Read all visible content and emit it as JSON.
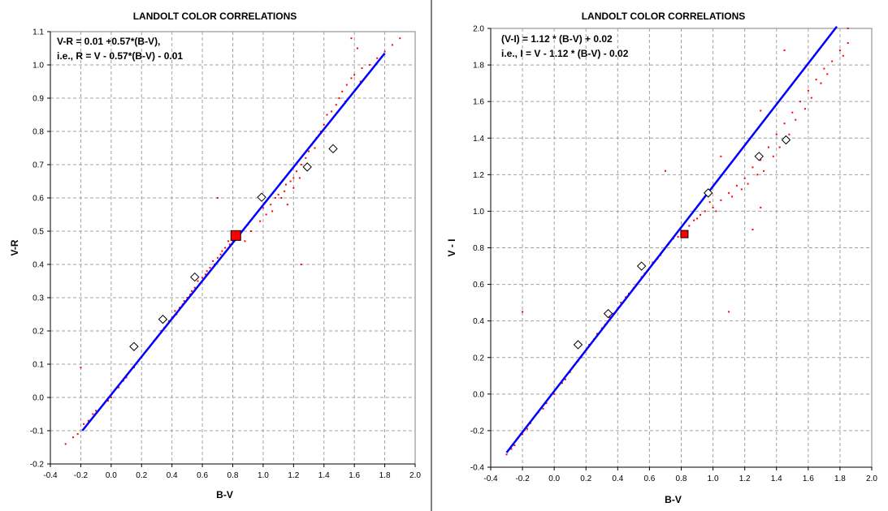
{
  "chart_data": [
    {
      "type": "scatter",
      "title": "LANDOLT COLOR CORRELATIONS",
      "xlabel": "B-V",
      "ylabel": "V-R",
      "xlim": [
        -0.4,
        2.0
      ],
      "ylim": [
        -0.2,
        1.1
      ],
      "x_ticks": [
        "-0.4",
        "-0.2",
        "0.0",
        "0.2",
        "0.4",
        "0.6",
        "0.8",
        "1.0",
        "1.2",
        "1.4",
        "1.6",
        "1.8",
        "2.0"
      ],
      "y_ticks": [
        "-0.2",
        "-0.1",
        "0.0",
        "0.1",
        "0.2",
        "0.3",
        "0.4",
        "0.5",
        "0.6",
        "0.7",
        "0.8",
        "0.9",
        "1.0",
        "1.1"
      ],
      "grid": true,
      "annotation_lines": [
        "V-R = 0.01 +0.57*(B-V),",
        "i.e., R = V - 0.57*(B-V) - 0.01"
      ],
      "series": [
        {
          "role": "fit",
          "color": "#0000ff",
          "points": [
            [
              -0.19,
              -0.1
            ],
            [
              1.8,
              1.035
            ]
          ]
        },
        {
          "role": "highlight",
          "color": "#ff0000",
          "points": [
            [
              0.82,
              0.487
            ]
          ]
        },
        {
          "role": "open-diamond",
          "color": "#000000",
          "points": [
            [
              0.15,
              0.153
            ],
            [
              0.34,
              0.235
            ],
            [
              0.55,
              0.362
            ],
            [
              0.99,
              0.602
            ],
            [
              1.29,
              0.693
            ],
            [
              1.46,
              0.748
            ]
          ]
        },
        {
          "role": "scatter",
          "color": "#ff0000",
          "points": [
            [
              -0.3,
              -0.14
            ],
            [
              -0.25,
              -0.12
            ],
            [
              -0.22,
              -0.11
            ],
            [
              -0.18,
              -0.08
            ],
            [
              -0.15,
              -0.07
            ],
            [
              -0.12,
              -0.05
            ],
            [
              -0.1,
              -0.04
            ],
            [
              -0.05,
              -0.02
            ],
            [
              -0.02,
              -0.01
            ],
            [
              0.0,
              0.0
            ],
            [
              0.02,
              0.02
            ],
            [
              0.05,
              0.03
            ],
            [
              0.08,
              0.05
            ],
            [
              0.1,
              0.06
            ],
            [
              0.15,
              0.09
            ],
            [
              0.18,
              0.11
            ],
            [
              0.2,
              0.12
            ],
            [
              0.25,
              0.15
            ],
            [
              0.28,
              0.17
            ],
            [
              0.3,
              0.18
            ],
            [
              0.35,
              0.21
            ],
            [
              0.38,
              0.23
            ],
            [
              0.4,
              0.24
            ],
            [
              0.42,
              0.26
            ],
            [
              0.45,
              0.27
            ],
            [
              0.48,
              0.29
            ],
            [
              0.5,
              0.3
            ],
            [
              0.52,
              0.31
            ],
            [
              0.55,
              0.33
            ],
            [
              0.58,
              0.34
            ],
            [
              0.6,
              0.36
            ],
            [
              0.62,
              0.37
            ],
            [
              0.65,
              0.39
            ],
            [
              0.68,
              0.4
            ],
            [
              0.7,
              0.42
            ],
            [
              0.72,
              0.43
            ],
            [
              0.75,
              0.45
            ],
            [
              0.78,
              0.46
            ],
            [
              0.8,
              0.47
            ],
            [
              0.85,
              0.5
            ],
            [
              0.9,
              0.52
            ],
            [
              0.95,
              0.55
            ],
            [
              1.0,
              0.57
            ],
            [
              1.02,
              0.55
            ],
            [
              1.05,
              0.58
            ],
            [
              1.08,
              0.6
            ],
            [
              1.1,
              0.61
            ],
            [
              1.12,
              0.6
            ],
            [
              1.15,
              0.64
            ],
            [
              1.18,
              0.65
            ],
            [
              1.2,
              0.66
            ],
            [
              1.22,
              0.68
            ],
            [
              1.25,
              0.7
            ],
            [
              1.28,
              0.72
            ],
            [
              1.3,
              0.74
            ],
            [
              1.32,
              0.76
            ],
            [
              1.35,
              0.78
            ],
            [
              1.38,
              0.8
            ],
            [
              1.4,
              0.82
            ],
            [
              1.42,
              0.85
            ],
            [
              1.45,
              0.86
            ],
            [
              1.48,
              0.88
            ],
            [
              1.5,
              0.9
            ],
            [
              1.52,
              0.92
            ],
            [
              1.55,
              0.94
            ],
            [
              1.58,
              0.96
            ],
            [
              1.6,
              0.97
            ],
            [
              1.65,
              0.99
            ],
            [
              1.7,
              1.0
            ],
            [
              1.75,
              1.02
            ],
            [
              1.8,
              1.04
            ],
            [
              1.85,
              1.06
            ],
            [
              1.9,
              1.08
            ],
            [
              1.58,
              1.08
            ],
            [
              1.62,
              1.05
            ],
            [
              0.7,
              0.6
            ],
            [
              0.98,
              0.53
            ],
            [
              1.25,
              0.4
            ],
            [
              -0.2,
              0.09
            ],
            [
              0.88,
              0.47
            ],
            [
              0.92,
              0.5
            ],
            [
              1.06,
              0.56
            ],
            [
              1.14,
              0.62
            ],
            [
              1.16,
              0.58
            ],
            [
              1.2,
              0.63
            ],
            [
              1.24,
              0.66
            ],
            [
              1.34,
              0.75
            ],
            [
              1.44,
              0.83
            ],
            [
              1.54,
              0.89
            ],
            [
              1.64,
              0.95
            ],
            [
              0.33,
              0.2
            ],
            [
              0.37,
              0.22
            ],
            [
              0.43,
              0.25
            ],
            [
              0.47,
              0.28
            ],
            [
              0.53,
              0.32
            ],
            [
              0.57,
              0.35
            ],
            [
              0.63,
              0.38
            ],
            [
              0.67,
              0.41
            ],
            [
              0.73,
              0.44
            ],
            [
              0.77,
              0.47
            ]
          ]
        }
      ]
    },
    {
      "type": "scatter",
      "title": "LANDOLT COLOR CORRELATIONS",
      "xlabel": "B-V",
      "ylabel": "V - I",
      "xlim": [
        -0.4,
        2.0
      ],
      "ylim": [
        -0.4,
        2.0
      ],
      "x_ticks": [
        "-0.4",
        "-0.2",
        "0.0",
        "0.2",
        "0.4",
        "0.6",
        "0.8",
        "1.0",
        "1.2",
        "1.4",
        "1.6",
        "1.8",
        "2.0"
      ],
      "y_ticks": [
        "-0.4",
        "-0.2",
        "0.0",
        "0.2",
        "0.4",
        "0.6",
        "0.8",
        "1.0",
        "1.2",
        "1.4",
        "1.6",
        "1.8",
        "2.0"
      ],
      "grid": true,
      "annotation_lines": [
        "(V-I) = 1.12 * (B-V) + 0.02",
        "i.e., I = V - 1.12 * (B-V) - 0.02"
      ],
      "series": [
        {
          "role": "fit",
          "color": "#0000ff",
          "points": [
            [
              -0.3,
              -0.32
            ],
            [
              1.78,
              2.01
            ]
          ]
        },
        {
          "role": "highlight",
          "color": "#ff0000",
          "points": [
            [
              0.82,
              0.875
            ]
          ]
        },
        {
          "role": "open-diamond",
          "color": "#000000",
          "points": [
            [
              0.15,
              0.27
            ],
            [
              0.34,
              0.44
            ],
            [
              0.55,
              0.7
            ],
            [
              0.97,
              1.1
            ],
            [
              1.29,
              1.3
            ],
            [
              1.46,
              1.39
            ]
          ]
        },
        {
          "role": "scatter",
          "color": "#ff0000",
          "points": [
            [
              -0.3,
              -0.33
            ],
            [
              -0.25,
              -0.28
            ],
            [
              -0.2,
              -0.22
            ],
            [
              -0.15,
              -0.16
            ],
            [
              -0.1,
              -0.1
            ],
            [
              -0.05,
              -0.05
            ],
            [
              0.0,
              0.0
            ],
            [
              0.05,
              0.06
            ],
            [
              0.1,
              0.12
            ],
            [
              0.15,
              0.18
            ],
            [
              0.2,
              0.24
            ],
            [
              0.25,
              0.3
            ],
            [
              0.3,
              0.36
            ],
            [
              0.35,
              0.42
            ],
            [
              0.4,
              0.47
            ],
            [
              0.45,
              0.53
            ],
            [
              0.5,
              0.58
            ],
            [
              0.55,
              0.64
            ],
            [
              0.6,
              0.69
            ],
            [
              0.65,
              0.74
            ],
            [
              0.7,
              0.8
            ],
            [
              0.75,
              0.85
            ],
            [
              0.8,
              0.88
            ],
            [
              0.85,
              0.92
            ],
            [
              0.9,
              0.96
            ],
            [
              0.95,
              1.0
            ],
            [
              1.0,
              1.02
            ],
            [
              1.05,
              1.06
            ],
            [
              1.1,
              1.1
            ],
            [
              1.15,
              1.14
            ],
            [
              1.2,
              1.18
            ],
            [
              1.25,
              1.24
            ],
            [
              1.3,
              1.28
            ],
            [
              1.35,
              1.35
            ],
            [
              1.4,
              1.42
            ],
            [
              1.45,
              1.48
            ],
            [
              1.5,
              1.54
            ],
            [
              1.55,
              1.6
            ],
            [
              1.6,
              1.66
            ],
            [
              1.65,
              1.72
            ],
            [
              1.7,
              1.78
            ],
            [
              1.75,
              1.82
            ],
            [
              1.8,
              1.88
            ],
            [
              1.85,
              1.92
            ],
            [
              1.1,
              0.45
            ],
            [
              0.7,
              1.22
            ],
            [
              -0.2,
              0.45
            ],
            [
              1.3,
              1.02
            ],
            [
              1.25,
              0.9
            ],
            [
              0.98,
              1.05
            ],
            [
              1.02,
              1.0
            ],
            [
              1.12,
              1.08
            ],
            [
              1.18,
              1.12
            ],
            [
              1.22,
              1.15
            ],
            [
              1.28,
              1.2
            ],
            [
              1.32,
              1.22
            ],
            [
              1.38,
              1.3
            ],
            [
              1.42,
              1.35
            ],
            [
              1.48,
              1.42
            ],
            [
              1.52,
              1.5
            ],
            [
              1.58,
              1.56
            ],
            [
              1.62,
              1.62
            ],
            [
              1.68,
              1.7
            ],
            [
              1.72,
              1.75
            ],
            [
              1.82,
              1.85
            ],
            [
              1.3,
              1.55
            ],
            [
              1.05,
              1.3
            ],
            [
              0.62,
              0.72
            ],
            [
              0.67,
              0.76
            ],
            [
              0.72,
              0.82
            ],
            [
              0.78,
              0.86
            ],
            [
              0.88,
              0.95
            ],
            [
              0.92,
              0.98
            ],
            [
              0.32,
              0.38
            ],
            [
              0.37,
              0.44
            ],
            [
              0.42,
              0.5
            ],
            [
              0.47,
              0.55
            ],
            [
              0.52,
              0.6
            ],
            [
              0.57,
              0.66
            ],
            [
              -0.27,
              -0.3
            ],
            [
              -0.17,
              -0.19
            ],
            [
              -0.07,
              -0.08
            ],
            [
              0.07,
              0.08
            ],
            [
              0.17,
              0.2
            ],
            [
              0.22,
              0.27
            ],
            [
              0.27,
              0.33
            ],
            [
              1.45,
              1.88
            ],
            [
              1.85,
              2.0
            ]
          ]
        }
      ]
    }
  ]
}
